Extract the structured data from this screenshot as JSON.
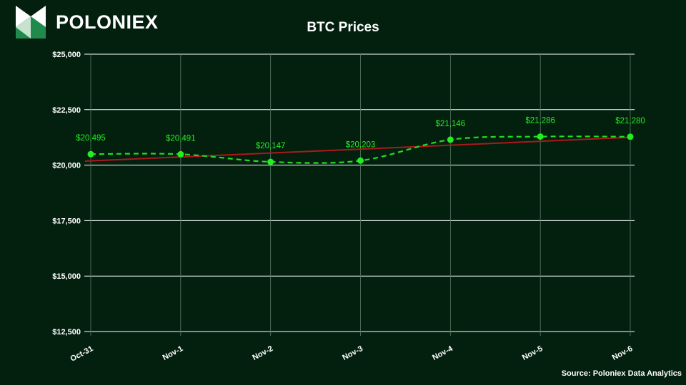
{
  "brand": {
    "name": "POLONIEX",
    "logo_icon": "poloniex-logo-icon"
  },
  "source": "Source: Poloniex Data Analytics",
  "colors": {
    "background": "#03200f",
    "series_line": "#22dd22",
    "series_point": "#22ee22",
    "trend_line": "#aa1a1a",
    "grid": "#ffffff",
    "logo_light": "#ffffff",
    "logo_green": "#1f8a4c"
  },
  "chart_data": {
    "type": "line",
    "title": "BTC Prices",
    "xlabel": "",
    "ylabel": "",
    "categories": [
      "Oct-31",
      "Nov-1",
      "Nov-2",
      "Nov-3",
      "Nov-4",
      "Nov-5",
      "Nov-6"
    ],
    "series": [
      {
        "values": [
          20495,
          20491,
          20147,
          20203,
          21146,
          21286,
          21280
        ],
        "data_labels": [
          "$20,495",
          "$20,491",
          "$20,147",
          "$20,203",
          "$21,146",
          "$21,286",
          "$21,280"
        ],
        "style": "dashed-smooth"
      }
    ],
    "trendline": {
      "type": "linear",
      "style": "solid"
    },
    "ylim": [
      12500,
      25000
    ],
    "yticks": [
      12500,
      15000,
      17500,
      20000,
      22500,
      25000
    ],
    "ytick_labels": [
      "$12,500",
      "$15,000",
      "$17,500",
      "$20,000",
      "$22,500",
      "$25,000"
    ],
    "grid": true,
    "legend": "none"
  }
}
